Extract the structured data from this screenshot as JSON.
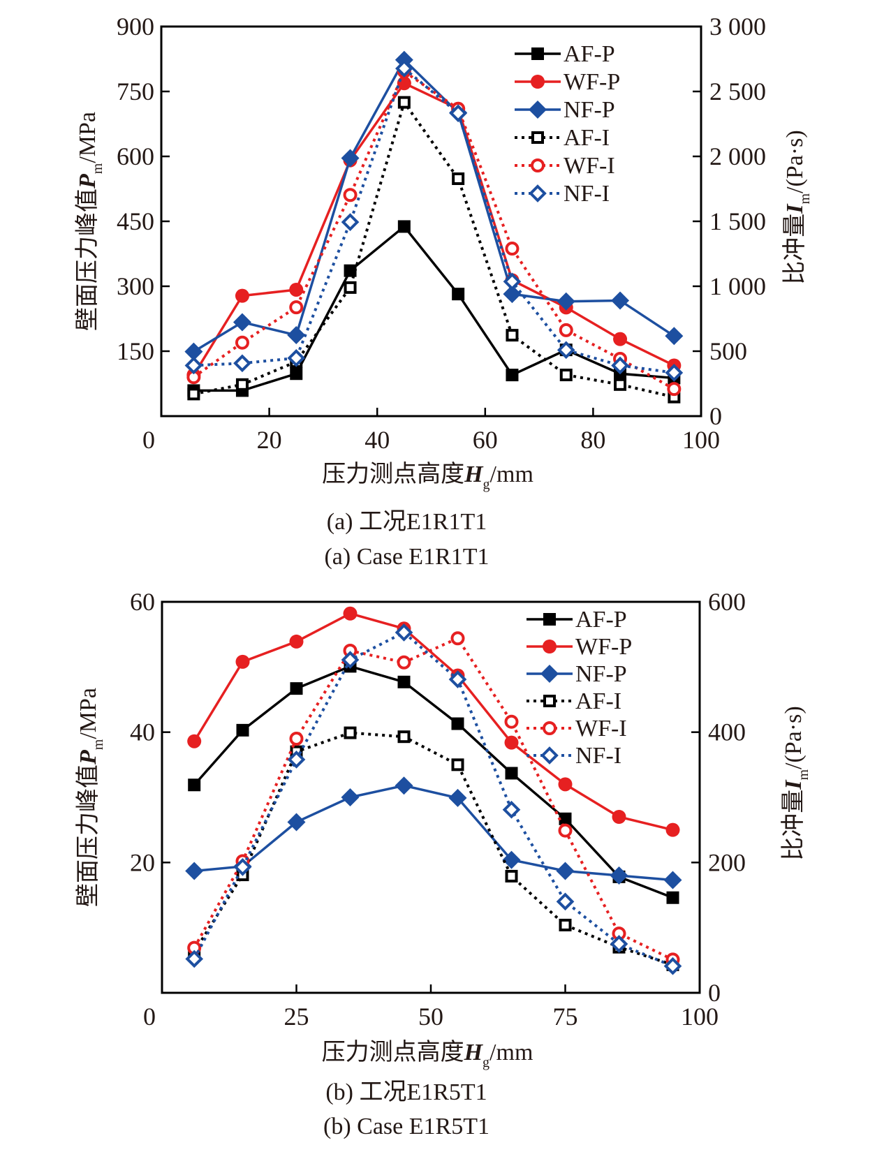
{
  "chart_data": [
    {
      "type": "line",
      "panel": "a",
      "caption_cn": "(a) 工况E1R1T1",
      "caption_en": "(a) Case E1R1T1",
      "xlabel": "压力测点高度H_g/mm",
      "xlabel_parts": {
        "main": "压力测点高度",
        "var": "H",
        "sub": "g",
        "unit": "/mm"
      },
      "ylabel": "壁面压力峰值P_m/MPa",
      "ylabel_parts": {
        "main": "壁面压力峰值",
        "var": "P",
        "sub": "m",
        "unit": "/MPa"
      },
      "y2label": "比冲量I_m/(Pa·s)",
      "y2label_parts": {
        "main": "比冲量",
        "var": "I",
        "sub": "m",
        "unit": "/(Pa·s)"
      },
      "xlim": [
        0,
        100
      ],
      "ylim": [
        0,
        900
      ],
      "y2lim": [
        0,
        3000
      ],
      "xticks": [
        0,
        20,
        40,
        60,
        80,
        100
      ],
      "xtick_labels": [
        "0",
        "20",
        "40",
        "60",
        "80",
        "100"
      ],
      "yticks": [
        150,
        300,
        450,
        600,
        750,
        900
      ],
      "ytick_labels": [
        "150",
        "300",
        "450",
        "600",
        "750",
        "900"
      ],
      "y2ticks": [
        0,
        500,
        1000,
        1500,
        2000,
        2500,
        3000
      ],
      "y2tick_labels": [
        "0",
        "500",
        "1 000",
        "1 500",
        "2 000",
        "2 500",
        "3 000"
      ],
      "grid": false,
      "legend_position": "top-right",
      "x": [
        6,
        15,
        25,
        35,
        45,
        55,
        65,
        75,
        85,
        95
      ],
      "series": [
        {
          "name": "AF-P",
          "axis": "left",
          "color": "#000000",
          "style": "solid",
          "marker": "square-filled",
          "values": [
            59,
            59,
            98,
            336,
            438,
            282,
            95,
            153,
            98,
            88
          ]
        },
        {
          "name": "WF-P",
          "axis": "left",
          "color": "#e62021",
          "style": "solid",
          "marker": "circle-filled",
          "values": [
            95,
            278,
            292,
            591,
            769,
            710,
            314,
            251,
            178,
            117
          ]
        },
        {
          "name": "NF-P",
          "axis": "left",
          "color": "#1d4fa0",
          "style": "solid",
          "marker": "diamond-filled",
          "values": [
            149,
            217,
            187,
            596,
            823,
            701,
            282,
            265,
            267,
            185
          ]
        },
        {
          "name": "AF-I",
          "axis": "right",
          "color": "#000000",
          "style": "dotted",
          "marker": "square-open",
          "values": [
            170,
            243,
            419,
            990,
            2416,
            1828,
            623,
            317,
            243,
            147
          ]
        },
        {
          "name": "WF-I",
          "axis": "right",
          "color": "#e62021",
          "style": "dotted",
          "marker": "circle-open",
          "values": [
            300,
            566,
            838,
            1703,
            2654,
            2366,
            1290,
            662,
            441,
            209
          ]
        },
        {
          "name": "NF-I",
          "axis": "right",
          "color": "#1d4fa0",
          "style": "dotted",
          "marker": "diamond-open",
          "values": [
            390,
            407,
            447,
            1494,
            2677,
            2332,
            1036,
            509,
            390,
            334
          ]
        }
      ]
    },
    {
      "type": "line",
      "panel": "b",
      "caption_cn": "(b) 工况E1R5T1",
      "caption_en": "(b) Case E1R5T1",
      "xlabel": "压力测点高度H_g/mm",
      "xlabel_parts": {
        "main": "压力测点高度",
        "var": "H",
        "sub": "g",
        "unit": "/mm"
      },
      "ylabel": "壁面压力峰值P_m/MPa",
      "ylabel_parts": {
        "main": "壁面压力峰值",
        "var": "P",
        "sub": "m",
        "unit": "/MPa"
      },
      "y2label": "比冲量I_m/(Pa·s)",
      "y2label_parts": {
        "main": "比冲量",
        "var": "I",
        "sub": "m",
        "unit": "/(Pa·s)"
      },
      "xlim": [
        0,
        100
      ],
      "ylim": [
        0,
        60
      ],
      "y2lim": [
        0,
        600
      ],
      "xticks": [
        0,
        25,
        50,
        75,
        100
      ],
      "xtick_labels": [
        "0",
        "25",
        "50",
        "75",
        "100"
      ],
      "yticks": [
        20,
        40,
        60
      ],
      "ytick_labels": [
        "20",
        "40",
        "60"
      ],
      "y2ticks": [
        0,
        200,
        400,
        600
      ],
      "y2tick_labels": [
        "0",
        "200",
        "400",
        "600"
      ],
      "grid": false,
      "legend_position": "top-right",
      "x": [
        6,
        15,
        25,
        35,
        45,
        55,
        65,
        75,
        85,
        95
      ],
      "series": [
        {
          "name": "AF-P",
          "axis": "left",
          "color": "#000000",
          "style": "solid",
          "marker": "square-filled",
          "values": [
            31.9,
            40.3,
            46.7,
            50.1,
            47.7,
            41.3,
            33.7,
            26.7,
            17.8,
            14.6
          ]
        },
        {
          "name": "WF-P",
          "axis": "left",
          "color": "#e62021",
          "style": "solid",
          "marker": "circle-filled",
          "values": [
            38.6,
            50.8,
            53.9,
            58.2,
            55.9,
            48.7,
            38.4,
            32.0,
            27.0,
            25.0
          ]
        },
        {
          "name": "NF-P",
          "axis": "left",
          "color": "#1d4fa0",
          "style": "solid",
          "marker": "diamond-filled",
          "values": [
            18.7,
            19.4,
            26.2,
            30.0,
            31.8,
            29.9,
            20.4,
            18.7,
            18.0,
            17.3
          ]
        },
        {
          "name": "AF-I",
          "axis": "right",
          "color": "#000000",
          "style": "dotted",
          "marker": "square-open",
          "values": [
            63,
            181,
            370,
            399,
            393,
            350,
            179,
            104,
            70,
            43
          ]
        },
        {
          "name": "WF-I",
          "axis": "right",
          "color": "#e62021",
          "style": "dotted",
          "marker": "circle-open",
          "values": [
            69,
            202,
            390,
            525,
            507,
            544,
            416,
            249,
            91,
            51
          ]
        },
        {
          "name": "NF-I",
          "axis": "right",
          "color": "#1d4fa0",
          "style": "dotted",
          "marker": "diamond-open",
          "values": [
            52,
            193,
            358,
            511,
            553,
            481,
            281,
            140,
            75,
            41
          ]
        }
      ]
    }
  ]
}
